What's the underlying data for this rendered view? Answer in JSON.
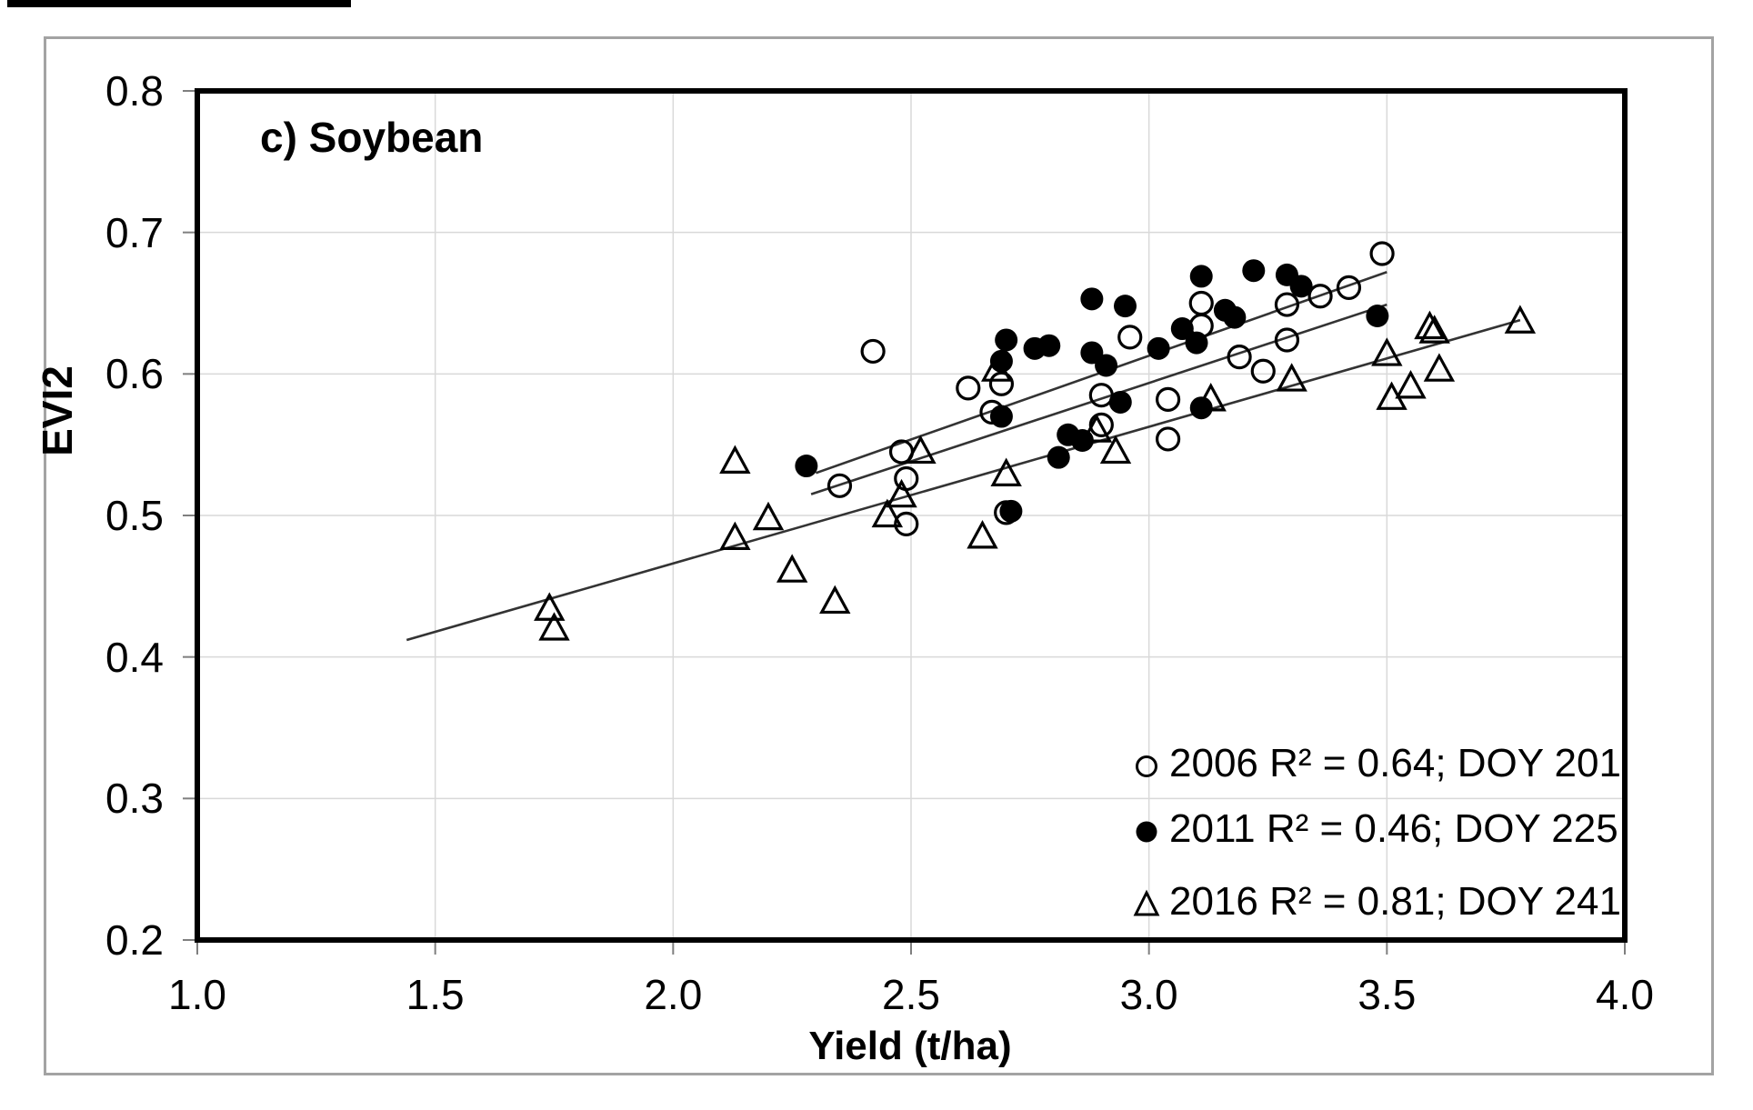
{
  "colors": {
    "marker": "#000000",
    "trendline": "#333333",
    "gridline": "#d9d9d9",
    "tick": "#7f7f7f",
    "plot_border": "#000000",
    "frame_border": "#a3a3a3",
    "background": "#ffffff"
  },
  "chart_data": {
    "type": "scatter",
    "title": "c) Soybean",
    "xlabel": "Yield (t/ha)",
    "ylabel": "EVI2",
    "xlim": [
      1.0,
      4.0
    ],
    "ylim": [
      0.2,
      0.8
    ],
    "x_tick_labels": [
      "1.0",
      "1.5",
      "2.0",
      "2.5",
      "3.0",
      "3.5",
      "4.0"
    ],
    "y_tick_labels": [
      "0.2",
      "0.3",
      "0.4",
      "0.5",
      "0.6",
      "0.7",
      "0.8"
    ],
    "grid": true,
    "legend_position": "lower right",
    "series": [
      {
        "name": "2006",
        "marker": "open-circle",
        "legend_label": "2006 R² = 0.64; DOY 201",
        "r_squared": 0.64,
        "doy": 201,
        "trendline": {
          "x1": 2.3,
          "y1": 0.53,
          "x2": 3.5,
          "y2": 0.672
        },
        "points": [
          [
            2.35,
            0.521
          ],
          [
            2.42,
            0.616
          ],
          [
            2.48,
            0.545
          ],
          [
            2.49,
            0.526
          ],
          [
            2.49,
            0.494
          ],
          [
            2.62,
            0.59
          ],
          [
            2.69,
            0.593
          ],
          [
            2.67,
            0.573
          ],
          [
            2.7,
            0.502
          ],
          [
            2.9,
            0.585
          ],
          [
            2.9,
            0.564
          ],
          [
            2.96,
            0.626
          ],
          [
            3.04,
            0.582
          ],
          [
            3.04,
            0.554
          ],
          [
            3.11,
            0.65
          ],
          [
            3.11,
            0.634
          ],
          [
            3.19,
            0.612
          ],
          [
            3.24,
            0.602
          ],
          [
            3.29,
            0.649
          ],
          [
            3.29,
            0.624
          ],
          [
            3.36,
            0.655
          ],
          [
            3.42,
            0.661
          ],
          [
            3.49,
            0.685
          ]
        ]
      },
      {
        "name": "2011",
        "marker": "filled-circle",
        "legend_label": "2011 R² = 0.46; DOY 225",
        "r_squared": 0.46,
        "doy": 225,
        "trendline": {
          "x1": 2.29,
          "y1": 0.515,
          "x2": 3.5,
          "y2": 0.649
        },
        "points": [
          [
            2.28,
            0.535
          ],
          [
            2.69,
            0.609
          ],
          [
            2.7,
            0.624
          ],
          [
            2.69,
            0.57
          ],
          [
            2.71,
            0.503
          ],
          [
            2.76,
            0.618
          ],
          [
            2.79,
            0.62
          ],
          [
            2.81,
            0.541
          ],
          [
            2.83,
            0.557
          ],
          [
            2.86,
            0.553
          ],
          [
            2.88,
            0.653
          ],
          [
            2.88,
            0.615
          ],
          [
            2.91,
            0.606
          ],
          [
            2.94,
            0.58
          ],
          [
            2.95,
            0.648
          ],
          [
            3.02,
            0.618
          ],
          [
            3.07,
            0.632
          ],
          [
            3.1,
            0.622
          ],
          [
            3.11,
            0.669
          ],
          [
            3.11,
            0.576
          ],
          [
            3.16,
            0.645
          ],
          [
            3.18,
            0.64
          ],
          [
            3.22,
            0.673
          ],
          [
            3.29,
            0.67
          ],
          [
            3.32,
            0.662
          ],
          [
            3.48,
            0.641
          ]
        ]
      },
      {
        "name": "2016",
        "marker": "open-triangle",
        "legend_label": "2016 R² = 0.81; DOY 241",
        "r_squared": 0.81,
        "doy": 241,
        "trendline": {
          "x1": 1.44,
          "y1": 0.412,
          "x2": 3.78,
          "y2": 0.638
        },
        "points": [
          [
            1.74,
            0.434
          ],
          [
            1.75,
            0.42
          ],
          [
            2.13,
            0.538
          ],
          [
            2.13,
            0.484
          ],
          [
            2.2,
            0.498
          ],
          [
            2.25,
            0.461
          ],
          [
            2.34,
            0.439
          ],
          [
            2.45,
            0.5
          ],
          [
            2.48,
            0.514
          ],
          [
            2.52,
            0.545
          ],
          [
            2.65,
            0.485
          ],
          [
            2.68,
            0.603
          ],
          [
            2.7,
            0.529
          ],
          [
            2.89,
            0.56
          ],
          [
            2.93,
            0.545
          ],
          [
            3.13,
            0.582
          ],
          [
            3.3,
            0.596
          ],
          [
            3.5,
            0.614
          ],
          [
            3.51,
            0.583
          ],
          [
            3.55,
            0.591
          ],
          [
            3.59,
            0.633
          ],
          [
            3.6,
            0.63
          ],
          [
            3.61,
            0.603
          ],
          [
            3.78,
            0.637
          ]
        ]
      }
    ]
  }
}
